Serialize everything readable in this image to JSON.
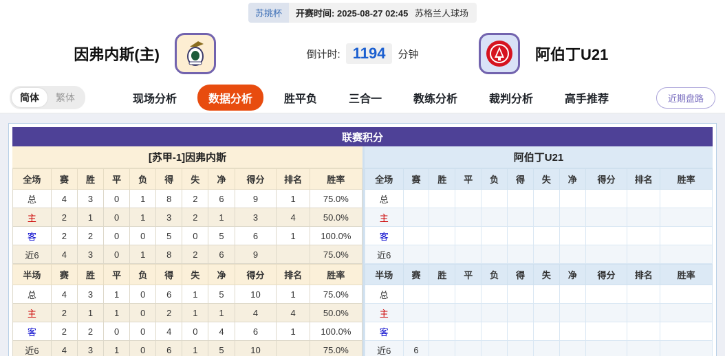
{
  "top_bar": {
    "league": "苏挑杯",
    "kickoff_label": "开赛时间:",
    "kickoff_time": "2025-08-27 02:45",
    "venue": "苏格兰人球场"
  },
  "header": {
    "home_team": "因弗内斯(主)",
    "away_team": "阿伯丁U21",
    "countdown_label": "倒计时:",
    "countdown_value": "1194",
    "countdown_unit": "分钟"
  },
  "nav": {
    "lang_options": [
      {
        "label": "简体",
        "active": true
      },
      {
        "label": "繁体",
        "active": false
      }
    ],
    "items": [
      {
        "label": "现场分析",
        "active": false
      },
      {
        "label": "数据分析",
        "active": true
      },
      {
        "label": "胜平负",
        "active": false
      },
      {
        "label": "三合一",
        "active": false
      },
      {
        "label": "教练分析",
        "active": false
      },
      {
        "label": "裁判分析",
        "active": false
      },
      {
        "label": "高手推荐",
        "active": false
      }
    ],
    "right_button": "近期盘路"
  },
  "league_table": {
    "title": "联赛积分",
    "home": {
      "team_header": "[苏甲-1]因弗内斯",
      "full": {
        "columns": [
          "全场",
          "赛",
          "胜",
          "平",
          "负",
          "得",
          "失",
          "净",
          "得分",
          "排名",
          "胜率"
        ],
        "rows": [
          {
            "label": "总",
            "cells": [
              "4",
              "3",
              "0",
              "1",
              "8",
              "2",
              "6",
              "9",
              "1",
              "75.0%"
            ]
          },
          {
            "label": "主",
            "cells": [
              "2",
              "1",
              "0",
              "1",
              "3",
              "2",
              "1",
              "3",
              "4",
              "50.0%"
            ]
          },
          {
            "label": "客",
            "cells": [
              "2",
              "2",
              "0",
              "0",
              "5",
              "0",
              "5",
              "6",
              "1",
              "100.0%"
            ]
          },
          {
            "label": "近6",
            "cells": [
              "4",
              "3",
              "0",
              "1",
              "8",
              "2",
              "6",
              "9",
              "",
              "75.0%"
            ]
          }
        ]
      },
      "half": {
        "columns": [
          "半场",
          "赛",
          "胜",
          "平",
          "负",
          "得",
          "失",
          "净",
          "得分",
          "排名",
          "胜率"
        ],
        "rows": [
          {
            "label": "总",
            "cells": [
              "4",
              "3",
              "1",
              "0",
              "6",
              "1",
              "5",
              "10",
              "1",
              "75.0%"
            ]
          },
          {
            "label": "主",
            "cells": [
              "2",
              "1",
              "1",
              "0",
              "2",
              "1",
              "1",
              "4",
              "4",
              "50.0%"
            ]
          },
          {
            "label": "客",
            "cells": [
              "2",
              "2",
              "0",
              "0",
              "4",
              "0",
              "4",
              "6",
              "1",
              "100.0%"
            ]
          },
          {
            "label": "近6",
            "cells": [
              "4",
              "3",
              "1",
              "0",
              "6",
              "1",
              "5",
              "10",
              "",
              "75.0%"
            ]
          }
        ]
      }
    },
    "away": {
      "team_header": "阿伯丁U21",
      "full": {
        "columns": [
          "全场",
          "赛",
          "胜",
          "平",
          "负",
          "得",
          "失",
          "净",
          "得分",
          "排名",
          "胜率"
        ],
        "rows": [
          {
            "label": "总",
            "cells": [
              "",
              "",
              "",
              "",
              "",
              "",
              "",
              "",
              "",
              ""
            ]
          },
          {
            "label": "主",
            "cells": [
              "",
              "",
              "",
              "",
              "",
              "",
              "",
              "",
              "",
              ""
            ]
          },
          {
            "label": "客",
            "cells": [
              "",
              "",
              "",
              "",
              "",
              "",
              "",
              "",
              "",
              ""
            ]
          },
          {
            "label": "近6",
            "cells": [
              "",
              "",
              "",
              "",
              "",
              "",
              "",
              "",
              "",
              ""
            ]
          }
        ]
      },
      "half": {
        "columns": [
          "半场",
          "赛",
          "胜",
          "平",
          "负",
          "得",
          "失",
          "净",
          "得分",
          "排名",
          "胜率"
        ],
        "rows": [
          {
            "label": "总",
            "cells": [
              "",
              "",
              "",
              "",
              "",
              "",
              "",
              "",
              "",
              ""
            ]
          },
          {
            "label": "主",
            "cells": [
              "",
              "",
              "",
              "",
              "",
              "",
              "",
              "",
              "",
              ""
            ]
          },
          {
            "label": "客",
            "cells": [
              "",
              "",
              "",
              "",
              "",
              "",
              "",
              "",
              "",
              ""
            ]
          },
          {
            "label": "近6",
            "cells": [
              "6",
              "",
              "",
              "",
              "",
              "",
              "",
              "",
              "",
              ""
            ]
          }
        ]
      }
    }
  },
  "colors": {
    "title_bar_purple": "#4e4197",
    "active_nav_orange": "#e84c0f",
    "home_panel_cream": "#fbf0d9",
    "away_panel_blue": "#dce9f5",
    "countdown_blue": "#1b5fd0",
    "home_row_label_red": "#cc0000",
    "away_row_label_blue": "#0000cc",
    "page_background": "#edeff5"
  }
}
